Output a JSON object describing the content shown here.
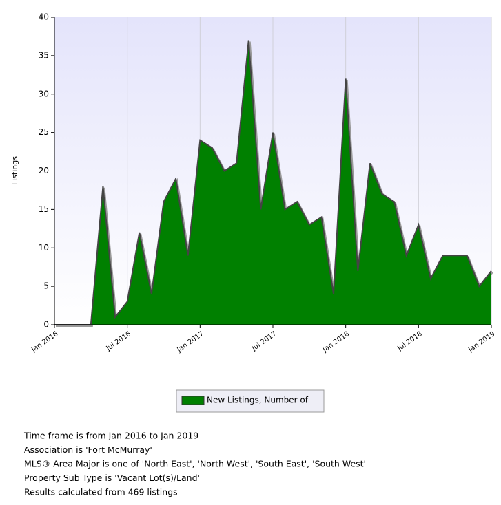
{
  "chart_data": {
    "type": "area",
    "y_label": "Listings",
    "categories": [
      "Jan 2016",
      null,
      null,
      null,
      null,
      null,
      "Jul 2016",
      null,
      null,
      null,
      null,
      null,
      "Jan 2017",
      null,
      null,
      null,
      null,
      null,
      "Jul 2017",
      null,
      null,
      null,
      null,
      null,
      "Jan 2018",
      null,
      null,
      null,
      null,
      null,
      "Jul 2018",
      null,
      null,
      null,
      null,
      null,
      "Jan 2019"
    ],
    "series": [
      {
        "name": "New Listings, Number of",
        "color": "#008000",
        "values": [
          0,
          0,
          0,
          0,
          18,
          1,
          3,
          12,
          4,
          16,
          19,
          9,
          24,
          23,
          20,
          21,
          37,
          15,
          25,
          15,
          16,
          13,
          14,
          4,
          32,
          7,
          21,
          17,
          16,
          9,
          13,
          6,
          9,
          9,
          9,
          5,
          7
        ]
      }
    ],
    "ylim": [
      0,
      40
    ],
    "yticks": [
      0,
      5,
      10,
      15,
      20,
      25,
      30,
      35,
      40
    ],
    "grid": "x",
    "legend": "bottom"
  },
  "footer": [
    "Time frame is from Jan 2016 to Jan 2019",
    "Association is 'Fort McMurray'",
    "MLS® Area Major is one of 'North East', 'North West', 'South East', 'South West'",
    "Property Sub Type is 'Vacant Lot(s)/Land'",
    "Results calculated from 469 listings"
  ]
}
